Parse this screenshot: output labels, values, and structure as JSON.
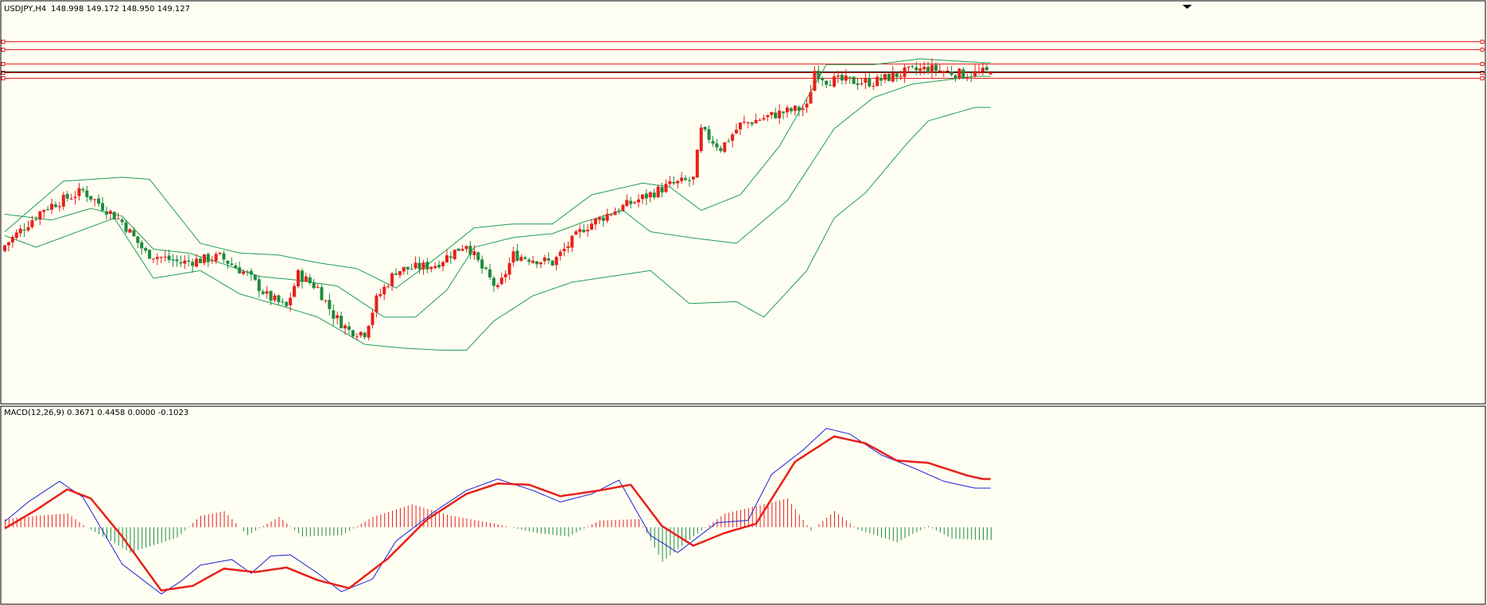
{
  "symbol_label": "USDJPY,H4",
  "ohlc_label": "148.998 149.172 148.950 149.127",
  "indicator_label": "MACD(12,26,9) 0.3671 0.4458 0.0000 -0.1023",
  "colors": {
    "background": "#fefef2",
    "bull": "#e8201a",
    "bear": "#1f8a3c",
    "bands": "#1f9e55",
    "level_lines": "#e8201a",
    "current_line": "#000000",
    "macd_line": "#1d22dc",
    "signal_line": "#e8201a",
    "hist_pos": "#e8201a",
    "hist_neg": "#1f8a3c"
  },
  "chart_data": [
    {
      "type": "candlestick",
      "title": "USDJPY,H4",
      "symbol": "USDJPY",
      "timeframe": "H4",
      "ohlc": {
        "open": 148.998,
        "high": 149.172,
        "low": 148.95,
        "close": 149.127
      },
      "indicators": [
        "Bollinger Bands"
      ],
      "grid": false,
      "series": [
        {
          "name": "close",
          "anchors": [
            [
              0,
              140.2
            ],
            [
              10,
              142.1
            ],
            [
              20,
              143.0
            ],
            [
              25,
              142.2
            ],
            [
              30,
              141.4
            ],
            [
              36,
              139.8
            ],
            [
              45,
              139.3
            ],
            [
              55,
              139.6
            ],
            [
              62,
              138.7
            ],
            [
              67,
              137.6
            ],
            [
              72,
              137.0
            ],
            [
              75,
              138.7
            ],
            [
              80,
              138.0
            ],
            [
              84,
              136.6
            ],
            [
              88,
              135.8
            ],
            [
              92,
              135.7
            ],
            [
              95,
              137.4
            ],
            [
              100,
              138.9
            ],
            [
              110,
              139.2
            ],
            [
              118,
              140.3
            ],
            [
              122,
              139.0
            ],
            [
              126,
              137.9
            ],
            [
              130,
              139.7
            ],
            [
              140,
              139.3
            ],
            [
              148,
              141.1
            ],
            [
              155,
              141.9
            ],
            [
              170,
              143.3
            ],
            [
              176,
              143.6
            ],
            [
              178,
              146.1
            ],
            [
              183,
              145.2
            ],
            [
              188,
              146.4
            ],
            [
              198,
              147.0
            ],
            [
              205,
              147.3
            ],
            [
              207,
              149.2
            ],
            [
              210,
              148.7
            ],
            [
              222,
              148.6
            ],
            [
              230,
              149.1
            ],
            [
              236,
              149.3
            ],
            [
              245,
              149.0
            ],
            [
              252,
              149.13
            ]
          ]
        },
        {
          "name": "upper_band",
          "anchors": [
            [
              0,
              140.9
            ],
            [
              15,
              143.5
            ],
            [
              30,
              143.7
            ],
            [
              37,
              143.6
            ],
            [
              50,
              140.3
            ],
            [
              60,
              139.8
            ],
            [
              70,
              139.7
            ],
            [
              80,
              139.3
            ],
            [
              90,
              139.0
            ],
            [
              100,
              138.0
            ],
            [
              110,
              139.5
            ],
            [
              120,
              141.1
            ],
            [
              130,
              141.3
            ],
            [
              140,
              141.3
            ],
            [
              150,
              142.8
            ],
            [
              163,
              143.4
            ],
            [
              170,
              143.2
            ],
            [
              178,
              142.0
            ],
            [
              188,
              142.8
            ],
            [
              198,
              145.3
            ],
            [
              210,
              149.5
            ],
            [
              222,
              149.5
            ],
            [
              234,
              149.8
            ],
            [
              250,
              149.6
            ]
          ]
        },
        {
          "name": "middle_band",
          "anchors": [
            [
              0,
              141.8
            ],
            [
              12,
              141.5
            ],
            [
              22,
              142.1
            ],
            [
              30,
              141.7
            ],
            [
              38,
              140.0
            ],
            [
              47,
              139.8
            ],
            [
              55,
              139.3
            ],
            [
              65,
              138.6
            ],
            [
              75,
              138.4
            ],
            [
              85,
              138.1
            ],
            [
              97,
              136.5
            ],
            [
              105,
              136.5
            ],
            [
              113,
              137.9
            ],
            [
              120,
              140.1
            ],
            [
              130,
              140.6
            ],
            [
              140,
              140.8
            ],
            [
              148,
              141.4
            ],
            [
              158,
              142.0
            ],
            [
              165,
              140.9
            ],
            [
              175,
              140.6
            ],
            [
              187,
              140.3
            ],
            [
              200,
              142.5
            ],
            [
              212,
              146.2
            ],
            [
              222,
              147.8
            ],
            [
              232,
              148.5
            ],
            [
              248,
              148.9
            ]
          ]
        },
        {
          "name": "lower_band",
          "anchors": [
            [
              0,
              140.7
            ],
            [
              8,
              140.1
            ],
            [
              20,
              141.0
            ],
            [
              28,
              141.6
            ],
            [
              38,
              138.5
            ],
            [
              50,
              138.9
            ],
            [
              60,
              137.7
            ],
            [
              72,
              137.0
            ],
            [
              80,
              136.5
            ],
            [
              92,
              135.1
            ],
            [
              102,
              134.9
            ],
            [
              112,
              134.8
            ],
            [
              118,
              134.8
            ],
            [
              125,
              136.3
            ],
            [
              135,
              137.6
            ],
            [
              145,
              138.3
            ],
            [
              155,
              138.6
            ],
            [
              165,
              138.9
            ],
            [
              175,
              137.2
            ],
            [
              187,
              137.3
            ],
            [
              194,
              136.5
            ],
            [
              205,
              138.9
            ],
            [
              212,
              141.6
            ],
            [
              220,
              142.9
            ],
            [
              230,
              145.3
            ],
            [
              236,
              146.6
            ],
            [
              248,
              147.3
            ]
          ]
        }
      ],
      "horizontal_levels": [
        150.7,
        150.3,
        149.55,
        149.1,
        148.8,
        149.127
      ]
    },
    {
      "type": "line",
      "title": "MACD(12,26,9) 0.3671 0.4458 0.0000 -0.1023",
      "values_printed": [
        0.3671,
        0.4458,
        0.0,
        -0.1023
      ],
      "grid": false,
      "series": [
        {
          "name": "MACD",
          "anchors": [
            [
              0,
              0.05
            ],
            [
              6,
              0.22
            ],
            [
              14,
              0.4
            ],
            [
              20,
              0.26
            ],
            [
              30,
              -0.32
            ],
            [
              40,
              -0.58
            ],
            [
              45,
              -0.47
            ],
            [
              50,
              -0.33
            ],
            [
              58,
              -0.28
            ],
            [
              63,
              -0.4
            ],
            [
              68,
              -0.25
            ],
            [
              73,
              -0.24
            ],
            [
              80,
              -0.4
            ],
            [
              86,
              -0.56
            ],
            [
              94,
              -0.45
            ],
            [
              100,
              -0.12
            ],
            [
              110,
              0.14
            ],
            [
              118,
              0.32
            ],
            [
              126,
              0.42
            ],
            [
              135,
              0.32
            ],
            [
              142,
              0.22
            ],
            [
              150,
              0.29
            ],
            [
              157,
              0.41
            ],
            [
              165,
              -0.07
            ],
            [
              172,
              -0.22
            ],
            [
              182,
              0.04
            ],
            [
              190,
              0.06
            ],
            [
              196,
              0.46
            ],
            [
              204,
              0.67
            ],
            [
              210,
              0.86
            ],
            [
              216,
              0.81
            ],
            [
              224,
              0.63
            ],
            [
              232,
              0.52
            ],
            [
              240,
              0.4
            ],
            [
              248,
              0.34
            ]
          ]
        },
        {
          "name": "Signal",
          "anchors": [
            [
              0,
              -0.01
            ],
            [
              8,
              0.15
            ],
            [
              16,
              0.33
            ],
            [
              22,
              0.25
            ],
            [
              30,
              -0.08
            ],
            [
              40,
              -0.55
            ],
            [
              48,
              -0.51
            ],
            [
              56,
              -0.36
            ],
            [
              64,
              -0.39
            ],
            [
              72,
              -0.35
            ],
            [
              80,
              -0.46
            ],
            [
              88,
              -0.53
            ],
            [
              98,
              -0.27
            ],
            [
              108,
              0.07
            ],
            [
              118,
              0.29
            ],
            [
              126,
              0.38
            ],
            [
              134,
              0.37
            ],
            [
              142,
              0.27
            ],
            [
              152,
              0.32
            ],
            [
              160,
              0.37
            ],
            [
              168,
              0.01
            ],
            [
              176,
              -0.16
            ],
            [
              184,
              -0.05
            ],
            [
              192,
              0.03
            ],
            [
              202,
              0.57
            ],
            [
              212,
              0.79
            ],
            [
              220,
              0.73
            ],
            [
              228,
              0.58
            ],
            [
              236,
              0.56
            ],
            [
              246,
              0.45
            ],
            [
              250,
              0.42
            ]
          ]
        },
        {
          "name": "Histogram",
          "anchors": [
            [
              0,
              0.07
            ],
            [
              8,
              0.1
            ],
            [
              16,
              0.12
            ],
            [
              20,
              0.02
            ],
            [
              32,
              -0.22
            ],
            [
              44,
              -0.09
            ],
            [
              50,
              0.1
            ],
            [
              56,
              0.14
            ],
            [
              62,
              -0.07
            ],
            [
              70,
              0.09
            ],
            [
              76,
              -0.08
            ],
            [
              86,
              -0.07
            ],
            [
              94,
              0.09
            ],
            [
              104,
              0.2
            ],
            [
              114,
              0.1
            ],
            [
              124,
              0.04
            ],
            [
              136,
              -0.05
            ],
            [
              144,
              -0.08
            ],
            [
              152,
              0.06
            ],
            [
              162,
              0.07
            ],
            [
              168,
              -0.3
            ],
            [
              176,
              -0.08
            ],
            [
              184,
              0.12
            ],
            [
              194,
              0.2
            ],
            [
              200,
              0.25
            ],
            [
              206,
              -0.03
            ],
            [
              212,
              0.14
            ],
            [
              218,
              -0.02
            ],
            [
              228,
              -0.13
            ],
            [
              236,
              0.01
            ],
            [
              242,
              -0.1
            ],
            [
              250,
              -0.11
            ]
          ]
        }
      ]
    }
  ]
}
